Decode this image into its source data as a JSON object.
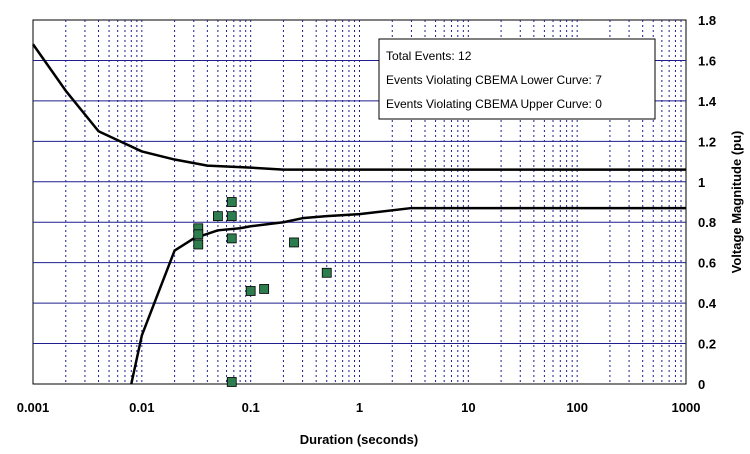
{
  "chart_data": {
    "type": "scatter",
    "xlabel": "Duration (seconds)",
    "ylabel": "Voltage Magnitude (pu)",
    "x_scale": "log",
    "xlim": [
      0.001,
      1000
    ],
    "ylim": [
      0,
      1.8
    ],
    "x_ticks": [
      "0.001",
      "0.01",
      "0.1",
      "1",
      "10",
      "100",
      "1000"
    ],
    "y_ticks": [
      "0",
      "0.2",
      "0.4",
      "0.6",
      "0.8",
      "1",
      "1.2",
      "1.4",
      "1.6",
      "1.8"
    ],
    "grid": {
      "horizontal": true,
      "vertical_minor_dotted": true
    },
    "colors": {
      "grid_h": "#1f1f8f",
      "grid_v": "#1f1f8f",
      "marker": "#2e7d4f",
      "curve": "#000000"
    },
    "annotations": [
      "Total Events: 12",
      "Events Violating CBEMA Lower Curve: 7",
      "Events Violating CBEMA Upper Curve: 0"
    ],
    "series": [
      {
        "type": "scatter",
        "x": [
          0.033,
          0.033,
          0.033,
          0.05,
          0.067,
          0.067,
          0.067,
          0.1,
          0.133,
          0.25,
          0.5,
          0.067
        ],
        "y": [
          0.77,
          0.74,
          0.69,
          0.83,
          0.9,
          0.83,
          0.72,
          0.46,
          0.47,
          0.7,
          0.55,
          0.01
        ]
      },
      {
        "type": "line",
        "x": [
          0.001,
          0.002,
          0.004,
          0.01,
          0.02,
          0.04,
          0.1,
          0.2,
          0.5,
          1,
          10,
          100,
          1000
        ],
        "y": [
          1.68,
          1.45,
          1.25,
          1.15,
          1.11,
          1.08,
          1.07,
          1.06,
          1.06,
          1.06,
          1.06,
          1.06,
          1.06
        ]
      },
      {
        "type": "line",
        "x": [
          0.008,
          0.01,
          0.02,
          0.03,
          0.05,
          0.08,
          0.1,
          0.2,
          0.3,
          0.5,
          1,
          3,
          10,
          1000
        ],
        "y": [
          0,
          0.24,
          0.66,
          0.72,
          0.76,
          0.77,
          0.78,
          0.8,
          0.82,
          0.83,
          0.84,
          0.87,
          0.87,
          0.87
        ]
      }
    ]
  }
}
